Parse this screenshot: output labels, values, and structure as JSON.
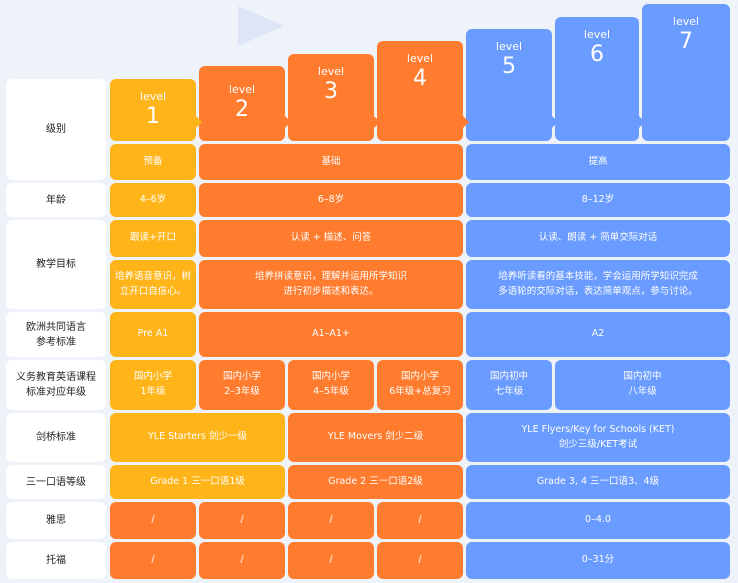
{
  "levels": [
    {
      "word": "level",
      "num": "1"
    },
    {
      "word": "level",
      "num": "2"
    },
    {
      "word": "level",
      "num": "3"
    },
    {
      "word": "level",
      "num": "4"
    },
    {
      "word": "level",
      "num": "5"
    },
    {
      "word": "level",
      "num": "6"
    },
    {
      "word": "level",
      "num": "7"
    }
  ],
  "row_labels": {
    "level": "级别",
    "age": "年龄",
    "goal": "教学目标",
    "cefr": "欧洲共同语言\n参考标准",
    "curriculum": "义务教育英语课程\n标准对应年级",
    "cambridge": "剑桥标准",
    "trinity": "三一口语等级",
    "ielts": "雅思",
    "toefl": "托福"
  },
  "stage": {
    "prep": "预备",
    "basic": "基础",
    "advanced": "提高"
  },
  "age": {
    "l1": "4–6岁",
    "l2_4": "6–8岁",
    "l5_7": "8–12岁"
  },
  "goal_top": {
    "l1": "跟读+开口",
    "l2_4": "认读 + 描述、问答",
    "l5_7": "认读、朗读 + 简单交际对话"
  },
  "goal_bottom": {
    "l1": "培养语音意识，树\n立开口自信心。",
    "l2_4": "培养拼读意识，理解并运用所学知识\n进行初步描述和表达。",
    "l5_7": "培养听读看的基本技能，学会运用所学知识完成\n多语轮的交际对话，表达简单观点，参与讨论。"
  },
  "cefr": {
    "l1": "Pre A1",
    "l2_4": "A1–A1+",
    "l5_7": "A2"
  },
  "curriculum": {
    "l1": "国内小学\n1年级",
    "l2": "国内小学\n2–3年级",
    "l3": "国内小学\n4–5年级",
    "l4": "国内小学\n6年级+总复习",
    "l5": "国内初中\n七年级",
    "l6_7": "国内初中\n八年级"
  },
  "cambridge": {
    "l1_2": "YLE Starters 剑少一级",
    "l3_4": "YLE Movers 剑少二级",
    "l5_7": "YLE Flyers/Key for Schools (KET)\n剑少三级/KET考试"
  },
  "trinity": {
    "l1_2": "Grade 1 三一口语1级",
    "l3_4": "Grade 2 三一口语2级",
    "l5_7": "Grade 3, 4 三一口语3、4级"
  },
  "ielts": {
    "l1": "/",
    "l2": "/",
    "l3": "/",
    "l4": "/",
    "l5_7": "0–4.0"
  },
  "toefl": {
    "l1": "/",
    "l2": "/",
    "l3": "/",
    "l4": "/",
    "l5_7": "0–31分"
  },
  "colors": {
    "yellow": "#ffb51a",
    "orange": "#ff7b2e",
    "blue": "#6a9bff"
  }
}
